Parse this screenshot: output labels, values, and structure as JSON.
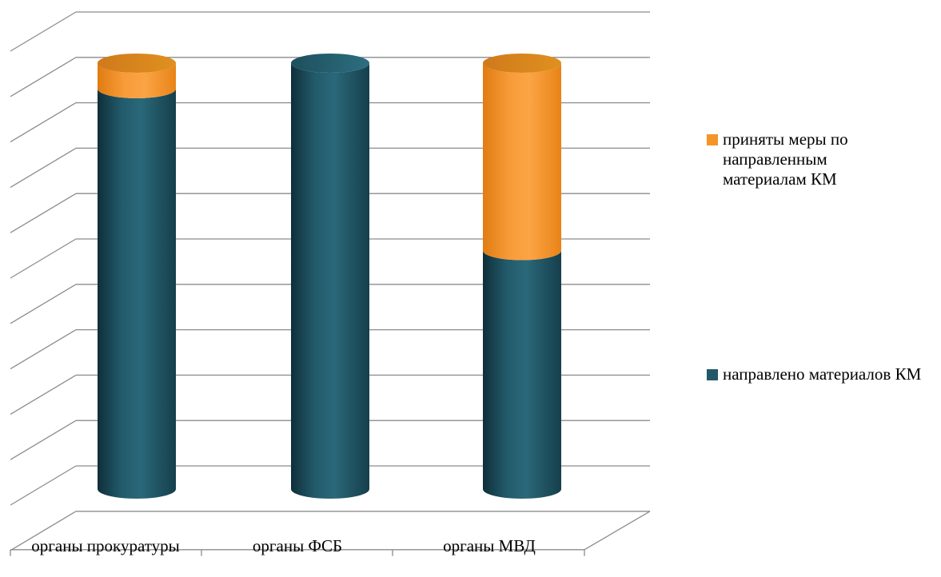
{
  "chart_data": {
    "type": "bar",
    "stacked": true,
    "shape": "cylinder",
    "categories": [
      "органы прокуратуры",
      "органы ФСБ",
      "органы МВД"
    ],
    "series": [
      {
        "name": "направлено материалов КМ",
        "values": [
          94,
          100,
          56
        ],
        "color": "#215968"
      },
      {
        "name": "приняты меры по направленным материалам КМ",
        "values": [
          6,
          0,
          44
        ],
        "color": "#F79428"
      }
    ],
    "ylim": [
      0,
      110
    ],
    "grid": true,
    "legend_position": "right"
  }
}
